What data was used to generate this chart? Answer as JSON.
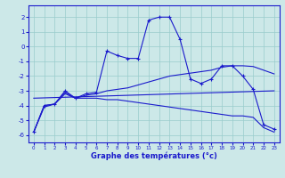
{
  "title": "Graphe des températures (°c)",
  "bg_color": "#cce8e8",
  "line_color": "#1a1acc",
  "grid_color": "#99cccc",
  "x_ticks": [
    0,
    1,
    2,
    3,
    4,
    5,
    6,
    7,
    8,
    9,
    10,
    11,
    12,
    13,
    14,
    15,
    16,
    17,
    18,
    19,
    20,
    21,
    22,
    23
  ],
  "y_ticks": [
    -6,
    -5,
    -4,
    -3,
    -2,
    -1,
    0,
    1,
    2
  ],
  "ylim": [
    -6.5,
    2.8
  ],
  "xlim": [
    -0.5,
    23.5
  ],
  "series1_x": [
    0,
    1,
    2,
    3,
    4,
    5,
    6,
    7,
    8,
    9,
    10,
    11,
    12,
    13,
    14,
    15,
    16,
    17,
    18,
    19,
    20,
    21,
    22,
    23
  ],
  "series1_y": [
    -5.8,
    -4.0,
    -3.9,
    -3.0,
    -3.5,
    -3.2,
    -3.1,
    -0.3,
    -0.6,
    -0.8,
    -0.8,
    1.8,
    2.0,
    2.0,
    0.5,
    -2.2,
    -2.5,
    -2.2,
    -1.3,
    -1.3,
    -2.0,
    -2.9,
    -5.3,
    -5.6
  ],
  "series2_x": [
    0,
    1,
    2,
    3,
    4,
    5,
    6,
    7,
    8,
    9,
    10,
    11,
    12,
    13,
    14,
    15,
    16,
    17,
    18,
    19,
    20,
    21,
    22,
    23
  ],
  "series2_y": [
    -5.8,
    -4.1,
    -3.9,
    -3.1,
    -3.5,
    -3.3,
    -3.2,
    -3.0,
    -2.9,
    -2.8,
    -2.6,
    -2.4,
    -2.2,
    -2.0,
    -1.9,
    -1.8,
    -1.7,
    -1.6,
    -1.4,
    -1.3,
    -1.3,
    -1.35,
    -1.6,
    -1.85
  ],
  "series3_x": [
    0,
    23
  ],
  "series3_y": [
    -3.5,
    -3.0
  ],
  "series4_x": [
    0,
    1,
    2,
    3,
    4,
    5,
    6,
    7,
    8,
    9,
    10,
    11,
    12,
    13,
    14,
    15,
    16,
    17,
    18,
    19,
    20,
    21,
    22,
    23
  ],
  "series4_y": [
    -5.8,
    -4.0,
    -3.9,
    -3.2,
    -3.5,
    -3.5,
    -3.5,
    -3.6,
    -3.6,
    -3.7,
    -3.8,
    -3.9,
    -4.0,
    -4.1,
    -4.2,
    -4.3,
    -4.4,
    -4.5,
    -4.6,
    -4.7,
    -4.7,
    -4.8,
    -5.5,
    -5.8
  ]
}
